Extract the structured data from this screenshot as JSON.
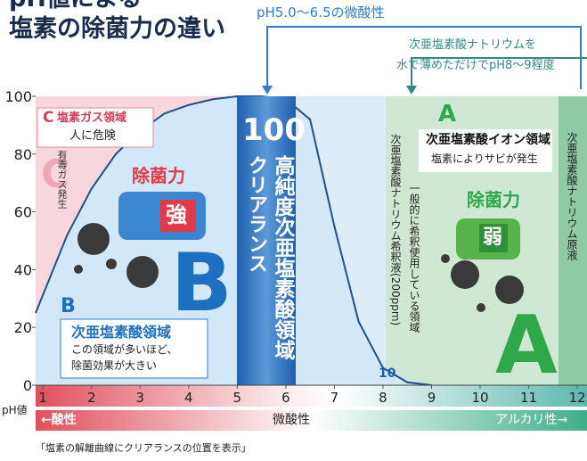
{
  "title": {
    "line1": "pH値による",
    "line2": "塩素の除菌力の違い"
  },
  "callouts": {
    "slightly_acidic": "pH5.0〜6.5の微酸性",
    "sodium_dilution": [
      "次亜塩素酸ナトリウムを",
      "水で薄めただけでpH8〜9程度"
    ]
  },
  "chart_data": {
    "type": "line",
    "x": [
      0.85,
      1.5,
      2,
      2.5,
      3,
      3.5,
      4,
      4.5,
      5,
      5.5,
      6,
      6.5,
      7,
      7.5,
      8,
      8.5,
      9
    ],
    "values": [
      25,
      52,
      68,
      80,
      88,
      94,
      97,
      99,
      100,
      100,
      99,
      92,
      55,
      22,
      6,
      1,
      0
    ],
    "color": "#1f4f8c",
    "xlabel": "pH値",
    "xlim": [
      0.85,
      12.2
    ],
    "xticks": [
      1,
      2,
      3,
      4,
      5,
      6,
      7,
      8,
      9,
      10,
      11,
      12
    ],
    "ylim": [
      0,
      100
    ],
    "yticks": [
      0,
      20,
      40,
      60,
      80,
      100
    ],
    "annotations": [
      "100",
      "10"
    ]
  },
  "region_c": {
    "letter": "C",
    "name": "塩素ガス領域",
    "note": "人に危険",
    "big_letter": "C",
    "side_note": "有毒ガス発生"
  },
  "region_b": {
    "power_label": "除菌力",
    "power": "強",
    "big_letter": "B",
    "letter": "B",
    "name": "次亜塩素酸領域",
    "desc": [
      "この領域が多いほど、",
      "除菌効果が大きい"
    ]
  },
  "clearance": {
    "name": "高純度次亜塩素酸領域",
    "brand": "クリアランス"
  },
  "region_a": {
    "dilute": "次亜塩素酸ナトリウム希釈液(200ppm)",
    "common": "一般的に希釈使用している領域",
    "letter": "A",
    "name": "次亜塩素酸イオン領域",
    "note": "塩素によりサビが発生",
    "power_label": "除菌力",
    "power": "弱",
    "big_letter": "A",
    "stock": "次亜塩素酸ナトリウム原液"
  },
  "scale_bar": {
    "acidic": "←酸性",
    "slightly_acidic": "微酸性",
    "alkaline": "アルカリ性→"
  },
  "footnote": "「塩素の解離曲線にクリアランスの位置を表示」"
}
